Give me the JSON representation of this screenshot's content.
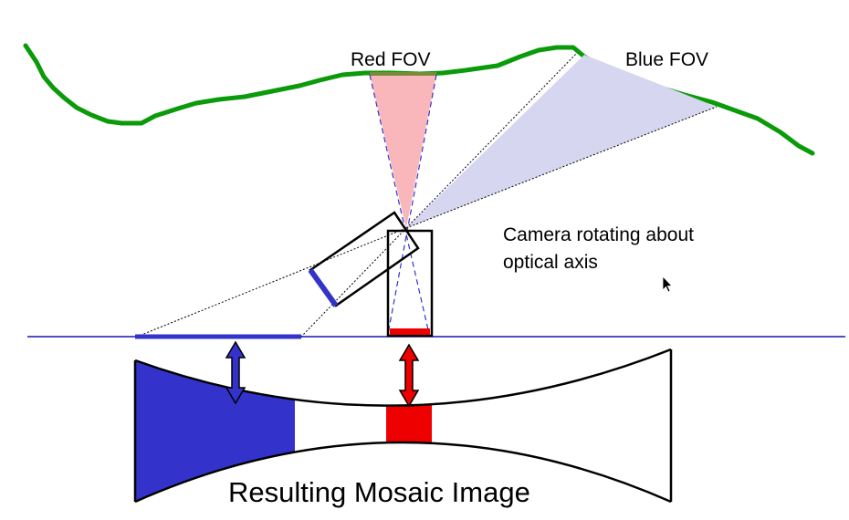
{
  "labels": {
    "red_fov": "Red FOV",
    "blue_fov": "Blue FOV",
    "camera_line1": "Camera rotating about",
    "camera_line2": "optical axis",
    "mosaic": "Resulting Mosaic Image"
  },
  "colors": {
    "terrain": "#0a9a0a",
    "red": "#ee0000",
    "red_fov_fill": "#f9b7bb",
    "blue": "#3333cc",
    "blue_fov_fill": "#d6d6f0",
    "axis_line": "#1515b0",
    "outline": "#000000"
  },
  "icons": {
    "cursor": "mouse-pointer-icon"
  }
}
